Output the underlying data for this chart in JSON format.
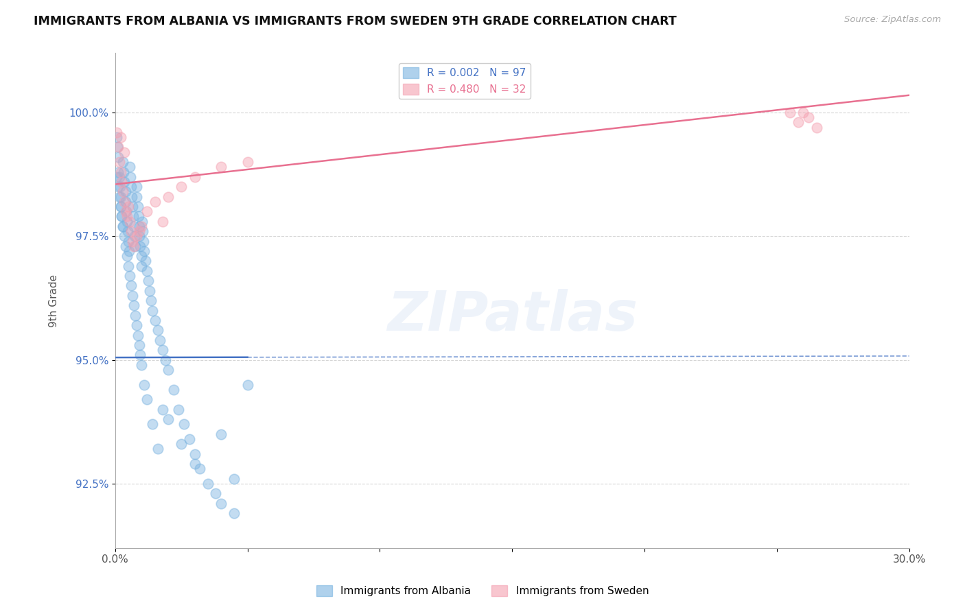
{
  "title": "IMMIGRANTS FROM ALBANIA VS IMMIGRANTS FROM SWEDEN 9TH GRADE CORRELATION CHART",
  "source_text": "Source: ZipAtlas.com",
  "ylabel": "9th Grade",
  "xlim": [
    0.0,
    30.0
  ],
  "ylim": [
    91.2,
    101.2
  ],
  "yticks": [
    92.5,
    95.0,
    97.5,
    100.0
  ],
  "ytick_labels": [
    "92.5%",
    "95.0%",
    "97.5%",
    "100.0%"
  ],
  "xticks": [
    0.0,
    5.0,
    10.0,
    15.0,
    20.0,
    25.0,
    30.0
  ],
  "xtick_labels": [
    "0.0%",
    "",
    "",
    "",
    "",
    "",
    "30.0%"
  ],
  "albania_color": "#7ab3e0",
  "sweden_color": "#f4a0b0",
  "albania_line_color": "#4472c4",
  "sweden_line_color": "#e87090",
  "watermark": "ZIPatlas",
  "albania_trend_y0": 95.05,
  "albania_trend_y1": 95.08,
  "sweden_trend_y0": 98.55,
  "sweden_trend_y1": 100.35,
  "albania_x": [
    0.05,
    0.08,
    0.1,
    0.12,
    0.15,
    0.18,
    0.2,
    0.22,
    0.25,
    0.28,
    0.3,
    0.32,
    0.35,
    0.38,
    0.4,
    0.42,
    0.45,
    0.48,
    0.5,
    0.52,
    0.55,
    0.58,
    0.6,
    0.62,
    0.65,
    0.68,
    0.7,
    0.72,
    0.75,
    0.8,
    0.82,
    0.85,
    0.88,
    0.9,
    0.92,
    0.95,
    0.98,
    1.0,
    1.02,
    1.05,
    1.08,
    1.1,
    1.15,
    1.2,
    1.25,
    1.3,
    1.35,
    1.4,
    1.5,
    1.6,
    1.7,
    1.8,
    1.9,
    2.0,
    2.2,
    2.4,
    2.6,
    2.8,
    3.0,
    3.2,
    3.5,
    3.8,
    4.0,
    4.5,
    5.0,
    0.05,
    0.1,
    0.15,
    0.2,
    0.25,
    0.3,
    0.35,
    0.4,
    0.45,
    0.5,
    0.55,
    0.6,
    0.65,
    0.7,
    0.75,
    0.8,
    0.85,
    0.9,
    0.95,
    1.0,
    1.1,
    1.2,
    1.4,
    1.6,
    1.8,
    2.0,
    2.5,
    3.0,
    4.0,
    4.5
  ],
  "albania_y": [
    99.5,
    99.3,
    99.1,
    98.8,
    98.7,
    98.5,
    98.3,
    98.1,
    97.9,
    97.7,
    99.0,
    98.8,
    98.6,
    98.4,
    98.2,
    98.0,
    97.8,
    97.6,
    97.4,
    97.2,
    98.9,
    98.7,
    98.5,
    98.3,
    98.1,
    97.9,
    97.7,
    97.5,
    97.3,
    98.5,
    98.3,
    98.1,
    97.9,
    97.7,
    97.5,
    97.3,
    97.1,
    96.9,
    97.8,
    97.6,
    97.4,
    97.2,
    97.0,
    96.8,
    96.6,
    96.4,
    96.2,
    96.0,
    95.8,
    95.6,
    95.4,
    95.2,
    95.0,
    94.8,
    94.4,
    94.0,
    93.7,
    93.4,
    93.1,
    92.8,
    92.5,
    92.3,
    92.1,
    91.9,
    94.5,
    98.7,
    98.5,
    98.3,
    98.1,
    97.9,
    97.7,
    97.5,
    97.3,
    97.1,
    96.9,
    96.7,
    96.5,
    96.3,
    96.1,
    95.9,
    95.7,
    95.5,
    95.3,
    95.1,
    94.9,
    94.5,
    94.2,
    93.7,
    93.2,
    94.0,
    93.8,
    93.3,
    92.9,
    93.5,
    92.6
  ],
  "sweden_x": [
    0.05,
    0.1,
    0.15,
    0.2,
    0.25,
    0.3,
    0.35,
    0.4,
    0.45,
    0.5,
    0.55,
    0.6,
    0.65,
    0.7,
    0.8,
    0.9,
    1.0,
    1.2,
    1.5,
    1.8,
    2.0,
    2.5,
    3.0,
    4.0,
    5.0,
    25.5,
    25.8,
    26.0,
    26.2,
    26.5,
    0.2,
    0.35
  ],
  "sweden_y": [
    99.6,
    99.3,
    99.0,
    98.8,
    98.6,
    98.4,
    98.2,
    98.0,
    97.9,
    98.1,
    97.8,
    97.6,
    97.4,
    97.3,
    97.5,
    97.6,
    97.7,
    98.0,
    98.2,
    97.8,
    98.3,
    98.5,
    98.7,
    98.9,
    99.0,
    100.0,
    99.8,
    100.0,
    99.9,
    99.7,
    99.5,
    99.2
  ]
}
